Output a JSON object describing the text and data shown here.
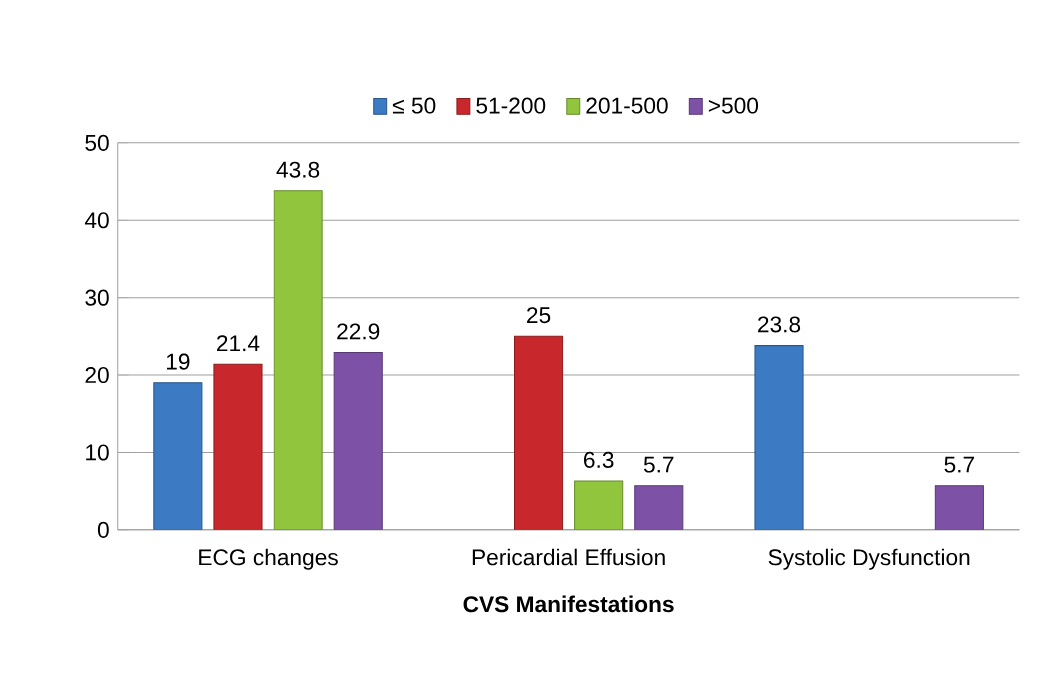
{
  "chart_data": {
    "type": "bar",
    "xlabel": "CVS Manifestations",
    "categories": [
      "ECG changes",
      "Pericardial Effusion",
      "Systolic Dysfunction"
    ],
    "series": [
      {
        "name": "≤ 50",
        "color": "#3c7bc4",
        "values": [
          19,
          null,
          23.8
        ]
      },
      {
        "name": "51-200",
        "color": "#c8282c",
        "values": [
          21.4,
          25,
          null
        ]
      },
      {
        "name": "201-500",
        "color": "#92c53e",
        "values": [
          43.8,
          6.3,
          null
        ]
      },
      {
        "name": ">500",
        "color": "#7d52a6",
        "values": [
          22.9,
          5.7,
          5.7
        ]
      }
    ],
    "ylim": [
      0,
      50
    ],
    "yticks": [
      0,
      10,
      20,
      30,
      40,
      50
    ],
    "grid": "y",
    "legend": "top",
    "data_labels": true
  }
}
